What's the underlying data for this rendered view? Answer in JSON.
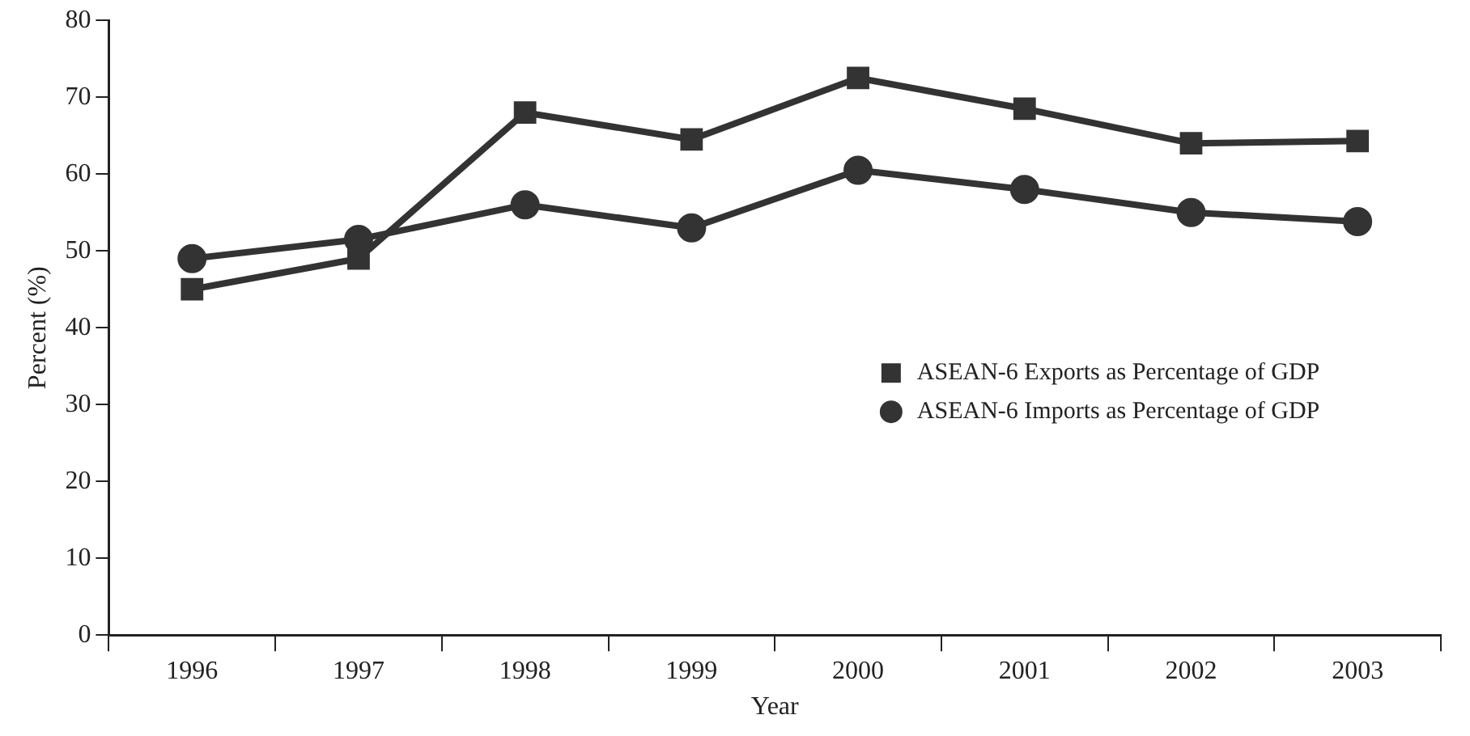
{
  "chart_data": {
    "type": "line",
    "xlabel": "Year",
    "ylabel": "Percent (%)",
    "categories": [
      "1996",
      "1997",
      "1998",
      "1999",
      "2000",
      "2001",
      "2002",
      "2003"
    ],
    "series": [
      {
        "name": "ASEAN-6 Exports as Percentage of GDP",
        "color": "#333333",
        "marker": "square",
        "values": [
          45,
          49,
          68,
          64.5,
          72.5,
          68.5,
          64,
          64.3
        ]
      },
      {
        "name": "ASEAN-6 Imports as Percentage of GDP",
        "color": "#333333",
        "marker": "circle",
        "values": [
          49,
          51.5,
          56,
          53,
          60.5,
          58,
          55,
          53.8
        ]
      }
    ],
    "ylim": [
      0,
      80
    ],
    "yticks": [
      0,
      10,
      20,
      30,
      40,
      50,
      60,
      70,
      80
    ],
    "grid": false,
    "legend": "right",
    "line_style": "solid"
  }
}
